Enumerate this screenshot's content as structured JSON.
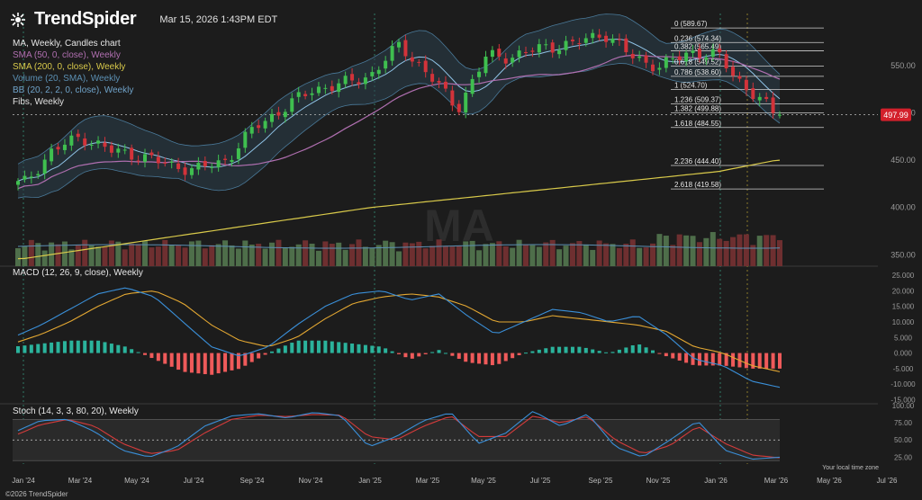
{
  "header": {
    "brand": "TrendSpider",
    "timestamp": "Mar 15, 2026 1:43PM EDT"
  },
  "legend": {
    "title": "MA, Weekly, Candles chart",
    "items": [
      {
        "text": "SMA (50, 0, close), Weekly",
        "color": "#b06fb0"
      },
      {
        "text": "SMA (200, 0, close), Weekly",
        "color": "#d8c94a"
      },
      {
        "text": "Volume (20, SMA), Weekly",
        "color": "#5b8fb3"
      },
      {
        "text": "BB (20, 2, 2, 0, close), Weekly",
        "color": "#6fa2c8"
      },
      {
        "text": "Fibs, Weekly",
        "color": "#e0e0e0"
      }
    ]
  },
  "footer": "©2026 TrendSpider",
  "timezone_note": "Your local time zone",
  "colors": {
    "up": "#3fbf4f",
    "down": "#d2333a",
    "hist_up": "#2bb39c",
    "hist_down": "#ef5a5a",
    "macd": "#3a8fd8",
    "signal": "#e4a832",
    "stoch_k": "#3a8fd8",
    "stoch_d": "#d43b3b",
    "price_badge": "#d3202b"
  },
  "chart_data": [
    {
      "type": "candlestick",
      "title": "MA, Weekly, Candles chart",
      "x_ticks": [
        "Jan '24",
        "Mar '24",
        "May '24",
        "Jul '24",
        "Sep '24",
        "Nov '24",
        "Jan '25",
        "Mar '25",
        "May '25",
        "Jul '25",
        "Sep '25",
        "Nov '25",
        "Jan '26",
        "Mar '26",
        "May '26",
        "Jul '26"
      ],
      "y_ticks": [
        350,
        400,
        450,
        500,
        550
      ],
      "ylim": [
        338,
        605
      ],
      "last_price": 497.99,
      "close_path": [
        [
          "Jan '24",
          425
        ],
        [
          "Feb '24",
          460
        ],
        [
          "Mar '24",
          475
        ],
        [
          "Apr '24",
          460
        ],
        [
          "May '24",
          455
        ],
        [
          "Jun '24",
          445
        ],
        [
          "Jul '24",
          440
        ],
        [
          "Aug '24",
          450
        ],
        [
          "Sep '24",
          485
        ],
        [
          "Oct '24",
          505
        ],
        [
          "Nov '24",
          525
        ],
        [
          "Dec '24",
          530
        ],
        [
          "Jan '25",
          540
        ],
        [
          "Feb '25",
          572
        ],
        [
          "Mar '25",
          540
        ],
        [
          "Apr '25",
          505
        ],
        [
          "May '25",
          560
        ],
        [
          "Jun '25",
          560
        ],
        [
          "Jul '25",
          570
        ],
        [
          "Aug '25",
          572
        ],
        [
          "Sep '25",
          585
        ],
        [
          "Oct '25",
          560
        ],
        [
          "Nov '25",
          548
        ],
        [
          "Dec '25",
          565
        ],
        [
          "Jan '26",
          560
        ],
        [
          "Feb '26",
          525
        ],
        [
          "Mar '26",
          498
        ]
      ],
      "fibs": [
        {
          "label": "0 (589.67)",
          "value": 589.67
        },
        {
          "label": "0.236 (574.34)",
          "value": 574.34
        },
        {
          "label": "0.382 (565.49)",
          "value": 565.49
        },
        {
          "label": "0.618 (549.52)",
          "value": 549.52
        },
        {
          "label": "0.786 (538.60)",
          "value": 538.6
        },
        {
          "label": "1 (524.70)",
          "value": 524.7
        },
        {
          "label": "1.236 (509.37)",
          "value": 509.37
        },
        {
          "label": "1.382 (499.88)",
          "value": 499.88
        },
        {
          "label": "1.618 (484.55)",
          "value": 484.55
        },
        {
          "label": "2.236 (444.40)",
          "value": 444.4
        },
        {
          "label": "2.618 (419.58)",
          "value": 419.58
        }
      ],
      "sma200": [
        [
          "Jan '24",
          346
        ],
        [
          "Jan '25",
          400
        ],
        [
          "Jan '26",
          438
        ],
        [
          "Mar '26",
          450
        ]
      ],
      "watermark": "MA"
    },
    {
      "type": "line",
      "title": "MACD (12, 26, 9, close), Weekly",
      "y_ticks": [
        25.0,
        20.0,
        15.0,
        10.0,
        5.0,
        0.0,
        -5.0,
        -10.0,
        -15.0
      ],
      "y_tick_labels": [
        "25.000",
        "20.000",
        "15.000",
        "10.000",
        "5.000",
        "0.000",
        "-5.000",
        "-10.000",
        "-15.000"
      ],
      "ylim": [
        -16,
        25
      ],
      "series": [
        {
          "name": "MACD",
          "values": [
            5,
            9,
            14,
            19,
            21,
            18,
            10,
            2,
            -1,
            2,
            9,
            15,
            19,
            20,
            17,
            19,
            12,
            6,
            10,
            14,
            13,
            10,
            12,
            6,
            -2,
            -4,
            -9,
            -11
          ]
        },
        {
          "name": "Signal",
          "values": [
            3,
            6,
            10,
            15,
            19,
            20,
            16,
            9,
            4,
            2,
            5,
            11,
            16,
            18,
            19,
            18,
            15,
            10,
            10,
            12,
            11,
            10,
            9,
            7,
            2,
            0,
            -4,
            -6
          ]
        }
      ]
    },
    {
      "type": "line",
      "title": "Stoch (14, 3, 3, 80, 20), Weekly",
      "y_ticks": [
        100,
        75,
        50,
        25
      ],
      "y_tick_labels": [
        "100.00",
        "75.00",
        "50.00",
        "25.00"
      ],
      "ylim": [
        15,
        100
      ],
      "bands": [
        80,
        20
      ],
      "series": [
        {
          "name": "%K",
          "values": [
            60,
            78,
            80,
            62,
            35,
            25,
            40,
            70,
            85,
            88,
            82,
            90,
            85,
            40,
            55,
            78,
            90,
            45,
            60,
            92,
            70,
            88,
            40,
            25,
            50,
            78,
            35,
            22,
            25
          ]
        },
        {
          "name": "%D",
          "values": [
            55,
            72,
            80,
            70,
            45,
            30,
            35,
            60,
            80,
            86,
            84,
            87,
            86,
            55,
            50,
            70,
            85,
            55,
            55,
            85,
            75,
            84,
            50,
            30,
            42,
            70,
            45,
            28,
            24
          ]
        }
      ]
    }
  ]
}
